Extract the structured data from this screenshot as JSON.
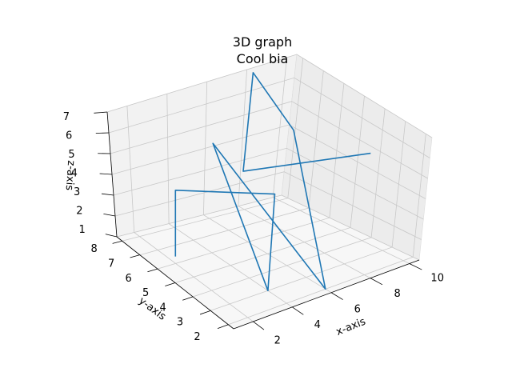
{
  "chart_data": {
    "type": "line",
    "title": "3D graph",
    "subtitle": "Cool bia",
    "xlabel": "x-axis",
    "ylabel": "y-axis",
    "zlabel": "z-axis",
    "xlim": [
      1,
      10.5
    ],
    "ylim": [
      1.7,
      8.3
    ],
    "zlim": [
      1,
      7
    ],
    "x_ticks": [
      "2",
      "4",
      "6",
      "8",
      "10"
    ],
    "y_ticks": [
      "2",
      "3",
      "4",
      "5",
      "6",
      "7",
      "8"
    ],
    "z_ticks": [
      "1",
      "2",
      "3",
      "4",
      "5",
      "6",
      "7"
    ],
    "grid": true,
    "series": [
      {
        "color": "#1f77b4",
        "x": [
          1,
          2,
          3,
          4,
          5,
          6,
          7,
          8,
          9,
          10
        ],
        "y": [
          5,
          6,
          2,
          3,
          7,
          2,
          5,
          8,
          9,
          4
        ],
        "z": [
          2,
          4,
          5,
          1,
          5,
          1,
          6,
          7,
          2,
          5
        ]
      }
    ]
  }
}
